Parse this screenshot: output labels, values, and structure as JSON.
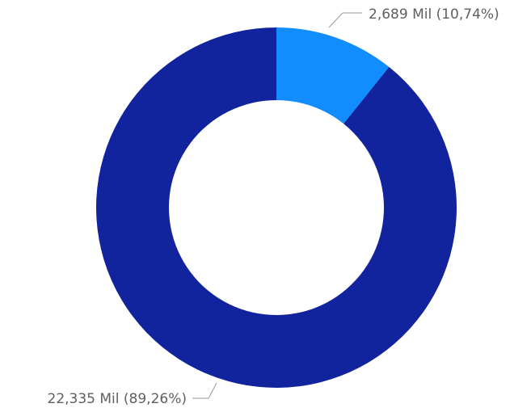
{
  "chart_data": {
    "type": "pie",
    "variant": "donut",
    "slices": [
      {
        "value": 2.689,
        "unit": "Mil",
        "label": "2,689 Mil (10,74%)",
        "percent": 10.74,
        "color": "#118DFF"
      },
      {
        "value": 22.335,
        "unit": "Mil",
        "label": "22,335 Mil (89,26%)",
        "percent": 89.26,
        "color": "#12239E"
      }
    ],
    "legend": "none"
  }
}
